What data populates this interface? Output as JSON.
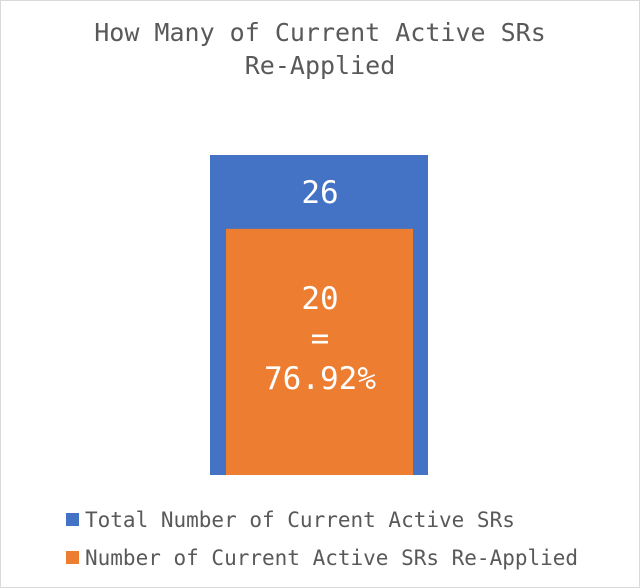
{
  "chart_data": {
    "type": "bar",
    "title_lines": [
      "How Many of Current Active SRs",
      "Re-Applied"
    ],
    "ylim": [
      0,
      26
    ],
    "series": [
      {
        "name": "Total Number of Current Active SRs",
        "value": 26,
        "label": "26",
        "color": "#4472C4"
      },
      {
        "name": "Number of Current Active SRs Re-Applied",
        "value": 20,
        "label_lines": [
          "20",
          "=",
          "76.92%"
        ],
        "color": "#ED7D31"
      }
    ],
    "legend_position": "bottom-left"
  }
}
